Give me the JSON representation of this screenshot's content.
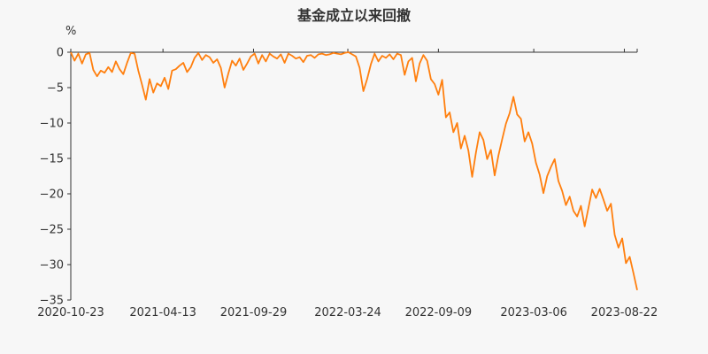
{
  "chart_data": {
    "type": "line",
    "title": "基金成立以来回撤",
    "ylabel": "%",
    "ylim": [
      -35,
      0
    ],
    "yticks": [
      0,
      -5,
      -10,
      -15,
      -20,
      -25,
      -30,
      -35
    ],
    "xticks": [
      "2020-10-23",
      "2021-04-13",
      "2021-09-29",
      "2022-03-24",
      "2022-09-09",
      "2023-03-06",
      "2023-08-22"
    ],
    "x_range": [
      "2020-10-23",
      "2023-09-15"
    ],
    "grid": false,
    "series": [
      {
        "color": "#ff7f0e",
        "points": [
          [
            "2020-10-23",
            0
          ],
          [
            "2020-10-30",
            -1.2
          ],
          [
            "2020-11-06",
            -0.2
          ],
          [
            "2020-11-13",
            -1.6
          ],
          [
            "2020-11-20",
            -0.3
          ],
          [
            "2020-11-27",
            -0.1
          ],
          [
            "2020-12-04",
            -2.5
          ],
          [
            "2020-12-11",
            -3.4
          ],
          [
            "2020-12-18",
            -2.6
          ],
          [
            "2020-12-25",
            -2.9
          ],
          [
            "2021-01-01",
            -2.1
          ],
          [
            "2021-01-08",
            -2.8
          ],
          [
            "2021-01-15",
            -1.3
          ],
          [
            "2021-01-22",
            -2.4
          ],
          [
            "2021-01-29",
            -3.1
          ],
          [
            "2021-02-05",
            -1.5
          ],
          [
            "2021-02-12",
            -0.1
          ],
          [
            "2021-02-19",
            -0.2
          ],
          [
            "2021-02-26",
            -2.6
          ],
          [
            "2021-03-05",
            -4.6
          ],
          [
            "2021-03-12",
            -6.7
          ],
          [
            "2021-03-19",
            -3.8
          ],
          [
            "2021-03-26",
            -5.7
          ],
          [
            "2021-04-02",
            -4.4
          ],
          [
            "2021-04-09",
            -4.8
          ],
          [
            "2021-04-16",
            -3.6
          ],
          [
            "2021-04-23",
            -5.2
          ],
          [
            "2021-04-30",
            -2.6
          ],
          [
            "2021-05-07",
            -2.4
          ],
          [
            "2021-05-14",
            -1.9
          ],
          [
            "2021-05-21",
            -1.5
          ],
          [
            "2021-05-28",
            -2.8
          ],
          [
            "2021-06-04",
            -2.1
          ],
          [
            "2021-06-11",
            -0.8
          ],
          [
            "2021-06-18",
            -0.1
          ],
          [
            "2021-06-25",
            -1.1
          ],
          [
            "2021-07-02",
            -0.4
          ],
          [
            "2021-07-09",
            -0.7
          ],
          [
            "2021-07-16",
            -1.5
          ],
          [
            "2021-07-23",
            -1.0
          ],
          [
            "2021-07-30",
            -2.2
          ],
          [
            "2021-08-06",
            -5.0
          ],
          [
            "2021-08-13",
            -3.0
          ],
          [
            "2021-08-20",
            -1.2
          ],
          [
            "2021-08-27",
            -1.9
          ],
          [
            "2021-09-03",
            -0.9
          ],
          [
            "2021-09-10",
            -2.5
          ],
          [
            "2021-09-17",
            -1.6
          ],
          [
            "2021-09-24",
            -0.6
          ],
          [
            "2021-10-01",
            -0.2
          ],
          [
            "2021-10-08",
            -1.6
          ],
          [
            "2021-10-15",
            -0.4
          ],
          [
            "2021-10-22",
            -1.3
          ],
          [
            "2021-10-29",
            -0.2
          ],
          [
            "2021-11-05",
            -0.6
          ],
          [
            "2021-11-12",
            -0.9
          ],
          [
            "2021-11-19",
            -0.3
          ],
          [
            "2021-11-26",
            -1.5
          ],
          [
            "2021-12-03",
            -0.2
          ],
          [
            "2021-12-10",
            -0.5
          ],
          [
            "2021-12-17",
            -0.9
          ],
          [
            "2021-12-24",
            -0.7
          ],
          [
            "2021-12-31",
            -1.4
          ],
          [
            "2022-01-07",
            -0.5
          ],
          [
            "2022-01-14",
            -0.4
          ],
          [
            "2022-01-21",
            -0.8
          ],
          [
            "2022-01-28",
            -0.3
          ],
          [
            "2022-02-04",
            -0.2
          ],
          [
            "2022-02-11",
            -0.4
          ],
          [
            "2022-02-18",
            -0.3
          ],
          [
            "2022-02-25",
            -0.1
          ],
          [
            "2022-03-04",
            -0.2
          ],
          [
            "2022-03-11",
            -0.3
          ],
          [
            "2022-03-18",
            -0.1
          ],
          [
            "2022-03-25",
            0
          ],
          [
            "2022-04-01",
            -0.3
          ],
          [
            "2022-04-08",
            -0.6
          ],
          [
            "2022-04-15",
            -2.2
          ],
          [
            "2022-04-22",
            -5.5
          ],
          [
            "2022-04-29",
            -3.8
          ],
          [
            "2022-05-06",
            -1.7
          ],
          [
            "2022-05-13",
            -0.2
          ],
          [
            "2022-05-20",
            -1.3
          ],
          [
            "2022-05-27",
            -0.5
          ],
          [
            "2022-06-03",
            -0.8
          ],
          [
            "2022-06-10",
            -0.3
          ],
          [
            "2022-06-17",
            -1.0
          ],
          [
            "2022-06-24",
            -0.2
          ],
          [
            "2022-07-01",
            -0.4
          ],
          [
            "2022-07-08",
            -3.2
          ],
          [
            "2022-07-15",
            -1.3
          ],
          [
            "2022-07-22",
            -0.8
          ],
          [
            "2022-07-29",
            -4.1
          ],
          [
            "2022-08-05",
            -1.6
          ],
          [
            "2022-08-12",
            -0.4
          ],
          [
            "2022-08-19",
            -1.2
          ],
          [
            "2022-08-26",
            -3.8
          ],
          [
            "2022-09-02",
            -4.5
          ],
          [
            "2022-09-09",
            -6.0
          ],
          [
            "2022-09-16",
            -3.9
          ],
          [
            "2022-09-23",
            -9.2
          ],
          [
            "2022-09-30",
            -8.5
          ],
          [
            "2022-10-07",
            -11.3
          ],
          [
            "2022-10-14",
            -10.0
          ],
          [
            "2022-10-21",
            -13.6
          ],
          [
            "2022-10-28",
            -11.8
          ],
          [
            "2022-11-04",
            -13.9
          ],
          [
            "2022-11-11",
            -17.6
          ],
          [
            "2022-11-18",
            -14.2
          ],
          [
            "2022-11-25",
            -11.3
          ],
          [
            "2022-12-02",
            -12.4
          ],
          [
            "2022-12-09",
            -15.1
          ],
          [
            "2022-12-16",
            -13.8
          ],
          [
            "2022-12-23",
            -17.4
          ],
          [
            "2022-12-30",
            -14.6
          ],
          [
            "2023-01-06",
            -12.3
          ],
          [
            "2023-01-13",
            -10.1
          ],
          [
            "2023-01-20",
            -8.6
          ],
          [
            "2023-01-27",
            -6.3
          ],
          [
            "2023-02-03",
            -8.8
          ],
          [
            "2023-02-10",
            -9.4
          ],
          [
            "2023-02-17",
            -12.6
          ],
          [
            "2023-02-24",
            -11.3
          ],
          [
            "2023-03-03",
            -12.9
          ],
          [
            "2023-03-10",
            -15.6
          ],
          [
            "2023-03-17",
            -17.3
          ],
          [
            "2023-03-24",
            -19.9
          ],
          [
            "2023-03-31",
            -17.5
          ],
          [
            "2023-04-07",
            -16.2
          ],
          [
            "2023-04-14",
            -15.1
          ],
          [
            "2023-04-21",
            -18.2
          ],
          [
            "2023-04-28",
            -19.6
          ],
          [
            "2023-05-05",
            -21.6
          ],
          [
            "2023-05-12",
            -20.4
          ],
          [
            "2023-05-19",
            -22.4
          ],
          [
            "2023-05-26",
            -23.2
          ],
          [
            "2023-06-02",
            -21.7
          ],
          [
            "2023-06-09",
            -24.6
          ],
          [
            "2023-06-16",
            -22.0
          ],
          [
            "2023-06-23",
            -19.4
          ],
          [
            "2023-06-30",
            -20.6
          ],
          [
            "2023-07-07",
            -19.3
          ],
          [
            "2023-07-14",
            -20.8
          ],
          [
            "2023-07-21",
            -22.4
          ],
          [
            "2023-07-28",
            -21.4
          ],
          [
            "2023-08-04",
            -25.8
          ],
          [
            "2023-08-11",
            -27.6
          ],
          [
            "2023-08-18",
            -26.3
          ],
          [
            "2023-08-25",
            -29.8
          ],
          [
            "2023-09-01",
            -28.9
          ],
          [
            "2023-09-08",
            -31.2
          ],
          [
            "2023-09-15",
            -33.6
          ]
        ]
      }
    ]
  }
}
